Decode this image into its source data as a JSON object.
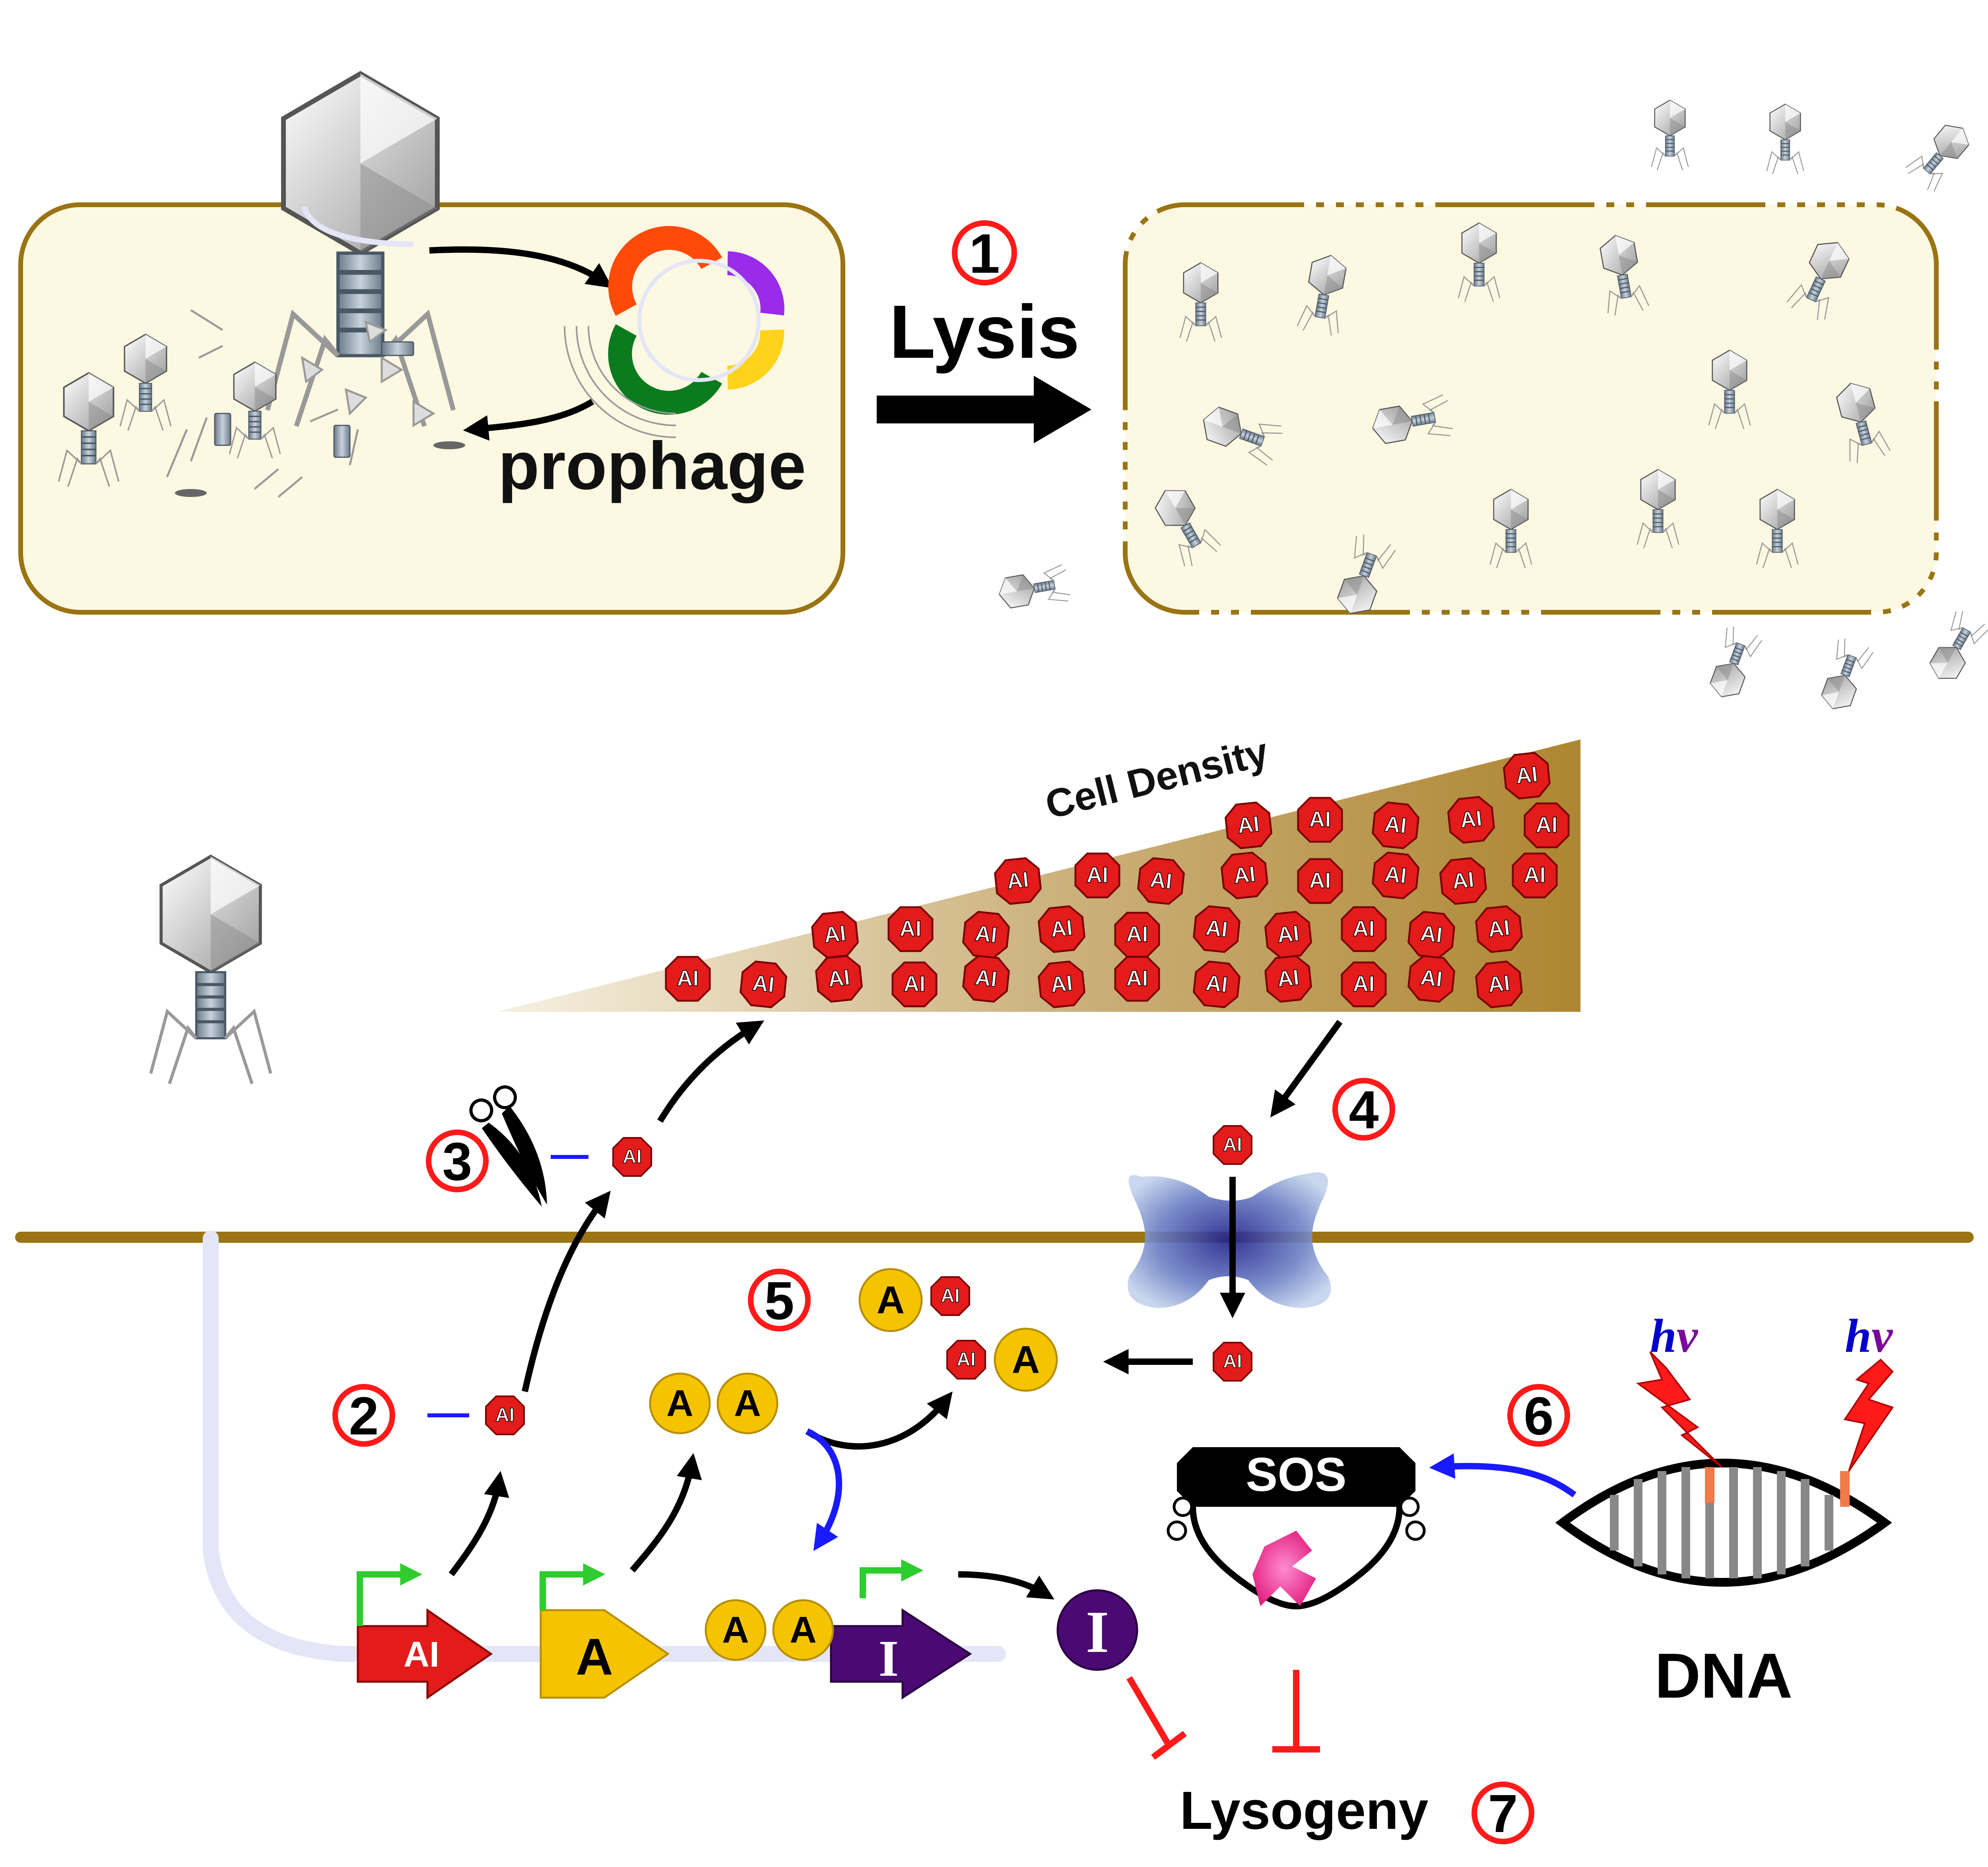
{
  "labels": {
    "prophage": "prophage",
    "lysis": "Lysis",
    "cell_density": "Cell Density",
    "autoinducer": "AI",
    "activator": "A",
    "inhibitor": "I",
    "sos": "SOS",
    "dna": "DNA",
    "lysogeny": "Lysogeny",
    "uv_h": "h",
    "uv_nu": "ν"
  },
  "steps": [
    "1",
    "2",
    "3",
    "4",
    "5",
    "6",
    "7"
  ],
  "colors": {
    "cell_fill": "#fdf8e1",
    "membrane": "#9a7414",
    "ai_red": "#e31b1b",
    "activator_yellow": "#f5c400",
    "inhibitor_purple": "#4b0a73",
    "promoter_green": "#2ecc2e",
    "inhibit_red": "#ff1a1a",
    "blue_arrow": "#1a1aff",
    "protease_pink": "#ff2d9b",
    "uv_blue": "#0000cc",
    "uv_purple": "#7a0a9a",
    "prophage_segments": [
      "#ff4a0a",
      "#9a2be8",
      "#0c7a1e",
      "#ffd21c"
    ]
  }
}
